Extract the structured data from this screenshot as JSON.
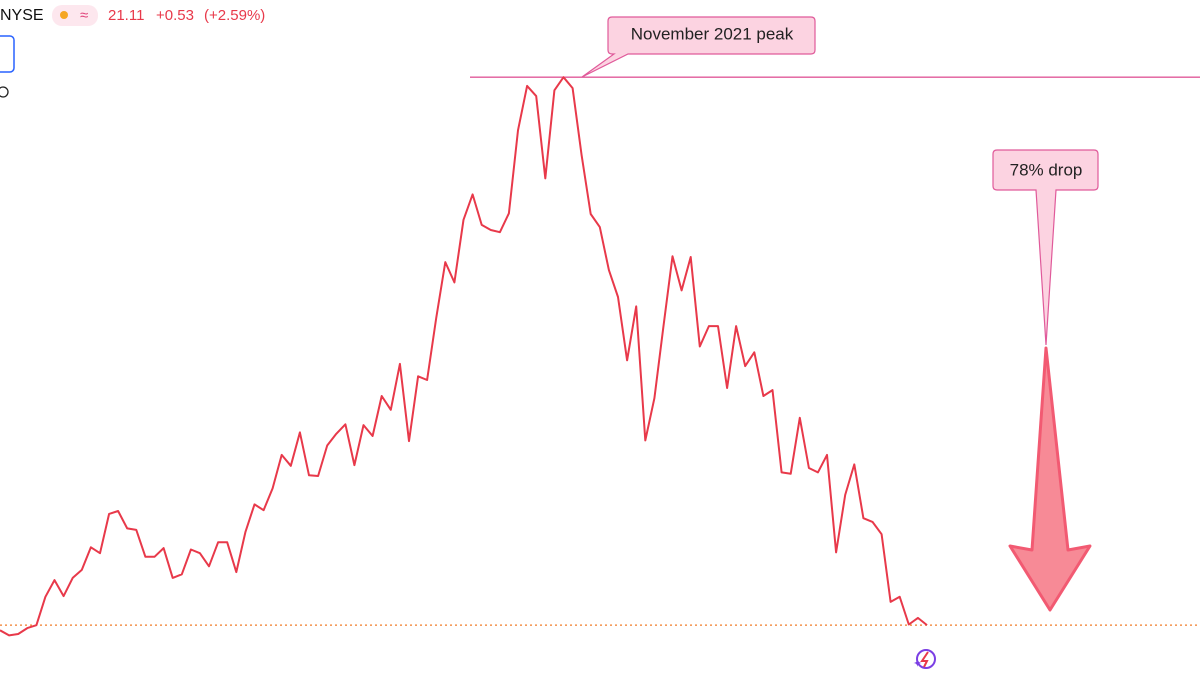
{
  "header": {
    "exchange": "NYSE",
    "change": "+0.53",
    "change_percent": "(+2.59%)"
  },
  "chart_data": {
    "type": "line",
    "current_price": 21.11,
    "color": "#e8394a",
    "peak_annotation": "November 2021 peak",
    "drop_annotation": "78% drop",
    "ylim": [
      10,
      100
    ],
    "values": [
      20.4,
      19.7,
      19.9,
      20.7,
      21.1,
      25.0,
      27.3,
      25.1,
      27.6,
      28.7,
      31.8,
      31.0,
      36.4,
      36.8,
      34.4,
      34.2,
      30.5,
      30.5,
      31.7,
      27.6,
      28.1,
      31.5,
      31.0,
      29.2,
      32.5,
      32.5,
      28.4,
      33.9,
      37.7,
      36.9,
      39.9,
      44.5,
      43.0,
      47.6,
      41.7,
      41.6,
      45.8,
      47.4,
      48.7,
      43.1,
      48.6,
      47.1,
      52.6,
      50.7,
      57.0,
      46.4,
      55.3,
      54.8,
      63.3,
      71.0,
      68.2,
      76.8,
      80.3,
      76.1,
      75.4,
      75.1,
      77.7,
      89.1,
      95.2,
      93.8,
      82.5,
      94.6,
      96.4,
      94.9,
      85.7,
      77.6,
      75.8,
      69.9,
      66.2,
      57.5,
      64.9,
      46.5,
      52.3,
      62.1,
      71.8,
      67.1,
      71.7,
      59.4,
      62.2,
      62.2,
      53.7,
      62.2,
      56.7,
      58.6,
      52.6,
      53.4,
      42.1,
      41.9,
      49.6,
      42.7,
      42.1,
      44.5,
      31.1,
      39.0,
      43.2,
      35.8,
      35.3,
      33.6,
      24.3,
      25.0,
      21.2,
      22.1,
      21.11
    ]
  }
}
